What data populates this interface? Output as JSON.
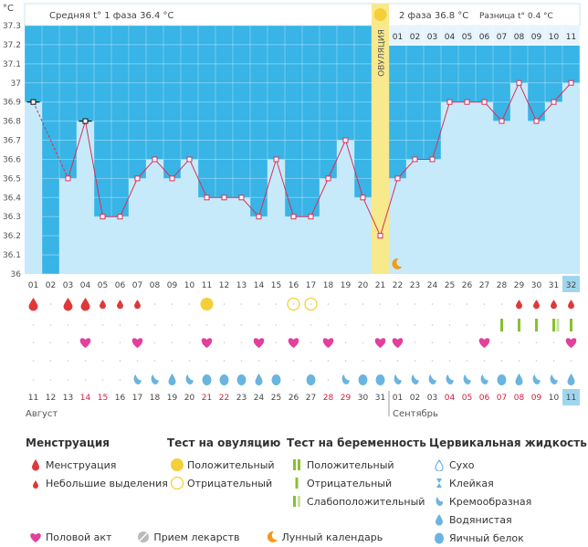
{
  "header": {
    "unit_label": "°C",
    "phase1": "Средняя t° 1 фаза 36.4 °C",
    "phase2": "2 фаза 36.8 °C",
    "diff": "Разница t° 0.4 °C",
    "ovulation_label": "ОВУЛЯЦИЯ"
  },
  "phase2_days": [
    "01",
    "02",
    "03",
    "04",
    "05",
    "06",
    "07",
    "08",
    "09",
    "10",
    "11"
  ],
  "months": {
    "first": "Август",
    "second": "Сентябрь"
  },
  "colors": {
    "highlight_blue": "#38b4e6",
    "bar_fill": "#c6eafa",
    "line": "#d8305a",
    "ovulation": "#f8e98c",
    "drop": "#e0383a",
    "heart": "#e2409a",
    "sun": "#f5cf3a",
    "test_green": "#88c030"
  },
  "chart_data": {
    "type": "line",
    "title": "",
    "ylabel": "°C",
    "ylim": [
      36,
      37.3
    ],
    "yticks": [
      36,
      36.1,
      36.2,
      36.3,
      36.4,
      36.5,
      36.6,
      36.7,
      36.8,
      36.9,
      37,
      37.1,
      37.2,
      37.3
    ],
    "cycle_days": [
      "01",
      "02",
      "03",
      "04",
      "05",
      "06",
      "07",
      "08",
      "09",
      "10",
      "11",
      "12",
      "13",
      "14",
      "15",
      "16",
      "17",
      "18",
      "19",
      "20",
      "21",
      "22",
      "23",
      "24",
      "25",
      "26",
      "27",
      "28",
      "29",
      "30",
      "31",
      "32"
    ],
    "dates": [
      "11",
      "12",
      "13",
      "14",
      "15",
      "16",
      "17",
      "18",
      "19",
      "20",
      "21",
      "22",
      "23",
      "24",
      "25",
      "26",
      "27",
      "28",
      "29",
      "30",
      "31",
      "01",
      "02",
      "03",
      "04",
      "05",
      "06",
      "07",
      "08",
      "09",
      "10",
      "11"
    ],
    "weekend_dates_idx": [
      3,
      4,
      10,
      11,
      17,
      18,
      24,
      25,
      26,
      27,
      28,
      29
    ],
    "temperatures": [
      36.9,
      null,
      36.5,
      36.8,
      36.3,
      36.3,
      36.5,
      36.6,
      36.5,
      36.6,
      36.4,
      36.4,
      36.4,
      36.3,
      36.6,
      36.3,
      36.3,
      36.5,
      36.7,
      36.4,
      36.2,
      36.5,
      36.6,
      36.6,
      36.9,
      36.9,
      36.9,
      36.8,
      37.0,
      36.8,
      36.9,
      37.0
    ],
    "marked_points": [
      0,
      3
    ],
    "ovulation_day_index": 20,
    "moon_day_index": 21,
    "menstruation": [
      "big",
      "",
      "big",
      "big",
      "small",
      "small",
      "small",
      "",
      "",
      "",
      "",
      "",
      "",
      "",
      "",
      "",
      "",
      "",
      "",
      "",
      "",
      "",
      "",
      "",
      "",
      "",
      "",
      "",
      "small",
      "small",
      "small",
      "small"
    ],
    "ovulation_test": [
      "",
      "",
      "",
      "",
      "",
      "",
      "",
      "",
      "",
      "",
      "positive",
      "",
      "",
      "",
      "",
      "negative",
      "negative",
      "",
      "",
      "",
      "",
      "",
      "",
      "",
      "",
      "",
      "",
      "",
      "",
      "",
      "",
      ""
    ],
    "pregnancy_test": [
      "",
      "",
      "",
      "",
      "",
      "",
      "",
      "",
      "",
      "",
      "",
      "",
      "",
      "",
      "",
      "",
      "",
      "",
      "",
      "",
      "",
      "",
      "",
      "",
      "",
      "",
      "",
      "",
      "",
      "",
      "",
      ""
    ],
    "pregnancy_test_marks": {
      "27": "positive",
      "28": "negative",
      "29": "negative",
      "30": "weak",
      "31": "positive"
    },
    "sex": [
      3,
      6,
      10,
      13,
      15,
      17,
      20,
      21,
      26,
      31
    ],
    "fluid": [
      "",
      "",
      "",
      "",
      "",
      "",
      "creamy",
      "creamy",
      "watery",
      "creamy",
      "egg",
      "egg",
      "egg",
      "watery",
      "egg",
      "",
      "egg",
      "",
      "creamy",
      "egg",
      "egg",
      "creamy",
      "creamy",
      "creamy",
      "creamy",
      "creamy",
      "creamy",
      "egg",
      "watery",
      "creamy",
      "creamy",
      "watery"
    ]
  },
  "legend": {
    "menstruation": {
      "title": "Менструация",
      "big": "Менструация",
      "small": "Небольшие выделения"
    },
    "ovulation_test": {
      "title": "Тест на овуляцию",
      "positive": "Положительный",
      "negative": "Отрицательный"
    },
    "pregnancy_test": {
      "title": "Тест на беременность",
      "positive": "Положительный",
      "negative": "Отрицательный",
      "weak": "Слабоположительный"
    },
    "fluid": {
      "title": "Цервикальная жидкость",
      "dry": "Сухо",
      "sticky": "Клейкая",
      "creamy": "Кремообразная",
      "watery": "Водянистая",
      "egg": "Яичный белок"
    },
    "bottom": {
      "sex": "Половой акт",
      "medication": "Прием лекарств",
      "moon": "Лунный календарь"
    }
  }
}
